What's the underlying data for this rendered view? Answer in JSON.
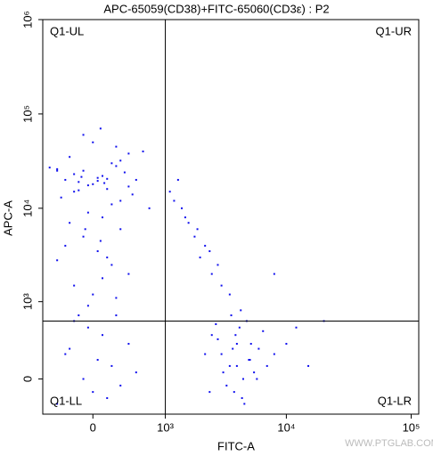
{
  "chart_data": {
    "type": "scatter",
    "title": "APC-65059(CD38)+FITC-65060(CD3ε) : P2",
    "x_label": "FITC-A",
    "y_label": "APC-A",
    "scale": "biexponential",
    "color": "#1010ee",
    "xlim": [
      -600,
      115000
    ],
    "ylim": [
      -300,
      1000000
    ],
    "xticks": [
      0,
      {
        "value": 1000,
        "label": "10³"
      },
      {
        "value": 10000,
        "label": "10⁴"
      },
      {
        "value": 100000,
        "label": "10⁵"
      }
    ],
    "yticks": [
      0,
      {
        "value": 1000,
        "label": "10³"
      },
      {
        "value": 10000,
        "label": "10⁴"
      },
      {
        "value": 100000,
        "label": "10⁵"
      },
      {
        "value": 1000000,
        "label": "10⁶"
      }
    ],
    "gates": {
      "x": 1000,
      "y": 600
    },
    "quadrants": {
      "ul": "Q1-UL",
      "ur": "Q1-UR",
      "ll": "Q1-LL",
      "lr": "Q1-LR"
    },
    "watermark": "WWW.PTGLAB.COM",
    "x": [
      -300,
      -200,
      -100,
      0,
      100,
      200,
      300,
      400,
      -400,
      500,
      -250,
      -50,
      150,
      350,
      -150,
      50,
      250,
      450,
      -350,
      600,
      0,
      100,
      -100,
      200,
      -200,
      300,
      50,
      -50,
      150,
      -150,
      700,
      -500,
      250,
      -250,
      80,
      -80,
      400,
      -400,
      120,
      -120,
      -100,
      50,
      200,
      -300,
      100,
      0,
      300,
      -200,
      150,
      -50,
      400,
      -400,
      250,
      80,
      -150,
      -300,
      0,
      200,
      -100,
      100,
      400,
      -400,
      300,
      -200,
      50,
      500,
      -50,
      150,
      -250,
      250,
      1200,
      1500,
      1800,
      2000,
      2500,
      1100,
      1600,
      2200,
      3000,
      1400,
      2800,
      3500,
      1300,
      1900,
      2400,
      3000,
      3500,
      4000,
      4500,
      5000,
      2500,
      6000,
      3800,
      4200,
      5500,
      2800,
      3300,
      4800,
      7000,
      2200,
      3600,
      4400,
      5200,
      3100,
      6500,
      4000,
      3700,
      4600,
      2700,
      5800,
      8000,
      3900,
      4300,
      2400,
      5100,
      10000,
      15000,
      8000,
      12000,
      20000
    ],
    "values": [
      20000,
      15000,
      25000,
      18000,
      22000,
      30000,
      12000,
      17000,
      26000,
      20000,
      35000,
      9000,
      16000,
      24000,
      19000,
      21000,
      28000,
      14000,
      13000,
      40000,
      50000,
      8000,
      60000,
      11000,
      23000,
      32000,
      19500,
      17500,
      20500,
      15500,
      10000,
      27000,
      45000,
      7000,
      70000,
      6000,
      38000,
      25000,
      18500,
      21500,
      5000,
      3500,
      2500,
      4000,
      1800,
      1200,
      6000,
      1500,
      3000,
      900,
      2000,
      2800,
      1100,
      4500,
      700,
      200,
      -100,
      100,
      0,
      400,
      300,
      -200,
      -50,
      600,
      150,
      50,
      500,
      -150,
      250,
      700,
      12000,
      8000,
      5000,
      3000,
      2000,
      15000,
      7000,
      4000,
      1500,
      10000,
      2500,
      1200,
      20000,
      6000,
      3500,
      200,
      100,
      300,
      0,
      150,
      400,
      250,
      -100,
      500,
      50,
      350,
      -50,
      600,
      100,
      200,
      700,
      -150,
      300,
      50,
      450,
      100,
      250,
      -200,
      550,
      0,
      200,
      400,
      800,
      -100,
      150,
      300,
      100,
      2000,
      500,
      600
    ]
  }
}
